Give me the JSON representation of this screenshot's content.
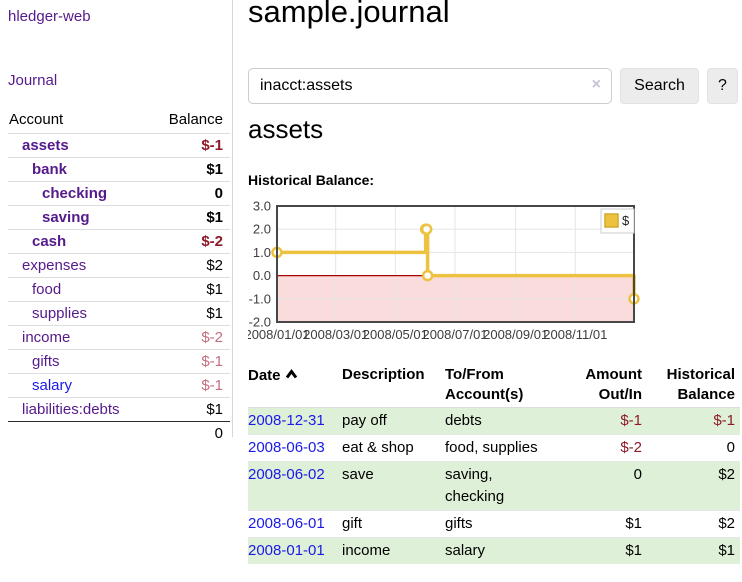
{
  "sidebar": {
    "app_title": "hledger-web",
    "nav_journal": "Journal",
    "table_headers": {
      "account": "Account",
      "balance": "Balance"
    },
    "accounts": [
      {
        "name": "assets",
        "balance": "$-1"
      },
      {
        "name": "bank",
        "balance": "$1"
      },
      {
        "name": "checking",
        "balance": "0"
      },
      {
        "name": "saving",
        "balance": "$1"
      },
      {
        "name": "cash",
        "balance": "$-2"
      },
      {
        "name": "expenses",
        "balance": "$2"
      },
      {
        "name": "food",
        "balance": "$1"
      },
      {
        "name": "supplies",
        "balance": "$1"
      },
      {
        "name": "income",
        "balance": "$-2"
      },
      {
        "name": "gifts",
        "balance": "$-1"
      },
      {
        "name": "salary",
        "balance": "$-1"
      },
      {
        "name": "liabilities:debts",
        "balance": "$1"
      }
    ],
    "total": "0"
  },
  "header": {
    "title": "sample.journal"
  },
  "search": {
    "value": "inacct:assets",
    "clear_icon": "×",
    "search_label": "Search",
    "help_label": "?"
  },
  "account_page": {
    "heading": "assets",
    "chart_label": "Historical Balance:"
  },
  "chart_data": {
    "type": "line",
    "step": true,
    "title": "Historical Balance:",
    "series": [
      {
        "name": "$",
        "color": "#edc240",
        "points": [
          [
            "2008-01-01",
            1
          ],
          [
            "2008-06-01",
            2
          ],
          [
            "2008-06-02",
            2
          ],
          [
            "2008-06-03",
            0
          ],
          [
            "2008-12-31",
            -1
          ]
        ]
      }
    ],
    "xmin": "2008-01-01",
    "xmax": "2008-12-31",
    "ylim": [
      -2,
      3
    ],
    "yticks": [
      {
        "v": 3,
        "label": "3.0"
      },
      {
        "v": 2,
        "label": "2.0"
      },
      {
        "v": 1,
        "label": "1.0"
      },
      {
        "v": 0,
        "label": "0.0"
      },
      {
        "v": -1,
        "label": "-1.0"
      },
      {
        "v": -2,
        "label": "-2.0"
      }
    ],
    "xticks": [
      {
        "date": "2008-01-01",
        "label": "2008/01/01"
      },
      {
        "date": "2008-03-01",
        "label": "2008/03/01"
      },
      {
        "date": "2008-05-01",
        "label": "2008/05/01"
      },
      {
        "date": "2008-07-01",
        "label": "2008/07/01"
      },
      {
        "date": "2008-09-01",
        "label": "2008/09/01"
      },
      {
        "date": "2008-11-01",
        "label": "2008/11/01"
      }
    ],
    "legend": {
      "position": "top-right",
      "label": "$"
    },
    "grid": true,
    "colors": {
      "line": "#edc240",
      "marker_fill": "#ffffff",
      "negative_region": "#fadcdc",
      "zero_line": "#a40000",
      "gridline": "#e6e6e6",
      "plot_border": "#474747",
      "tick_text": "#3d3d3d"
    }
  },
  "register": {
    "columns": {
      "date": "Date",
      "description": "Description",
      "accounts": "To/From Account(s)",
      "amount": "Amount Out/In",
      "balance": "Historical Balance"
    },
    "rows": [
      {
        "date": "2008-12-31",
        "description": "pay off",
        "accounts": "debts",
        "amount": "$-1",
        "balance": "$-1"
      },
      {
        "date": "2008-06-03",
        "description": "eat & shop",
        "accounts": "food, supplies",
        "amount": "$-2",
        "balance": "0"
      },
      {
        "date": "2008-06-02",
        "description": "save",
        "accounts": "saving, checking",
        "amount": "0",
        "balance": "$2"
      },
      {
        "date": "2008-06-01",
        "description": "gift",
        "accounts": "gifts",
        "amount": "$1",
        "balance": "$2"
      },
      {
        "date": "2008-01-01",
        "description": "income",
        "accounts": "salary",
        "amount": "$1",
        "balance": "$1"
      }
    ]
  },
  "colors": {
    "link_visited_purple": "#551a8b",
    "link_blue": "#1a1ae8",
    "negative_strong": "#8e1a28",
    "negative_soft": "#c46e7e",
    "row_highlight_green": "#dff0d8"
  }
}
